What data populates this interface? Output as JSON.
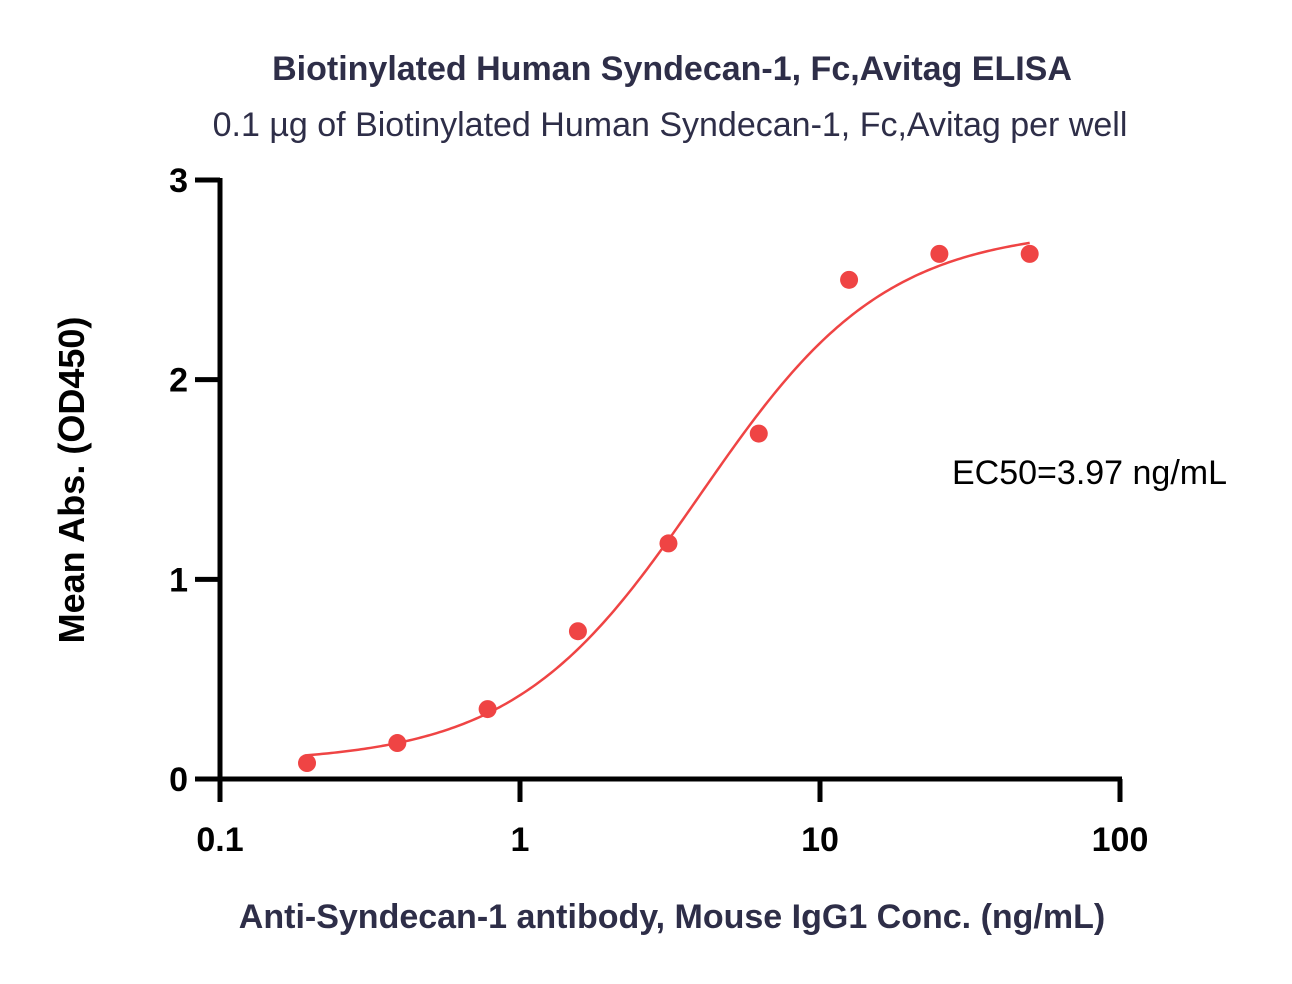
{
  "chart_data": {
    "type": "scatter",
    "title": "Biotinylated Human Syndecan-1, Fc,Avitag ELISA",
    "subtitle": "0.1 µg of Biotinylated Human Syndecan-1, Fc,Avitag per well",
    "xlabel": "Anti-Syndecan-1 antibody, Mouse IgG1 Conc. (ng/mL)",
    "ylabel": "Mean Abs. (OD450)",
    "x_scale": "log",
    "xlim": [
      0.1,
      100
    ],
    "ylim": [
      0,
      3
    ],
    "x_ticks": [
      "0.1",
      "1",
      "10",
      "100"
    ],
    "x_tick_values": [
      0.1,
      1,
      10,
      100
    ],
    "y_ticks": [
      "0",
      "1",
      "2",
      "3"
    ],
    "y_tick_values": [
      0,
      1,
      2,
      3
    ],
    "grid": false,
    "legend": "none",
    "annotation": "EC50=3.97 ng/mL",
    "series": [
      {
        "x": [
          0.195,
          0.39,
          0.78,
          1.56,
          3.125,
          6.25,
          12.5,
          25,
          50
        ],
        "y": [
          0.08,
          0.18,
          0.35,
          0.74,
          1.18,
          1.73,
          2.5,
          2.63,
          2.63
        ],
        "color": "#ef4444",
        "fit": {
          "model": "4PL",
          "bottom": 0.08,
          "top": 2.76,
          "ec50": 3.97,
          "hill": 1.4,
          "x_range": [
            0.195,
            50
          ]
        }
      }
    ]
  }
}
